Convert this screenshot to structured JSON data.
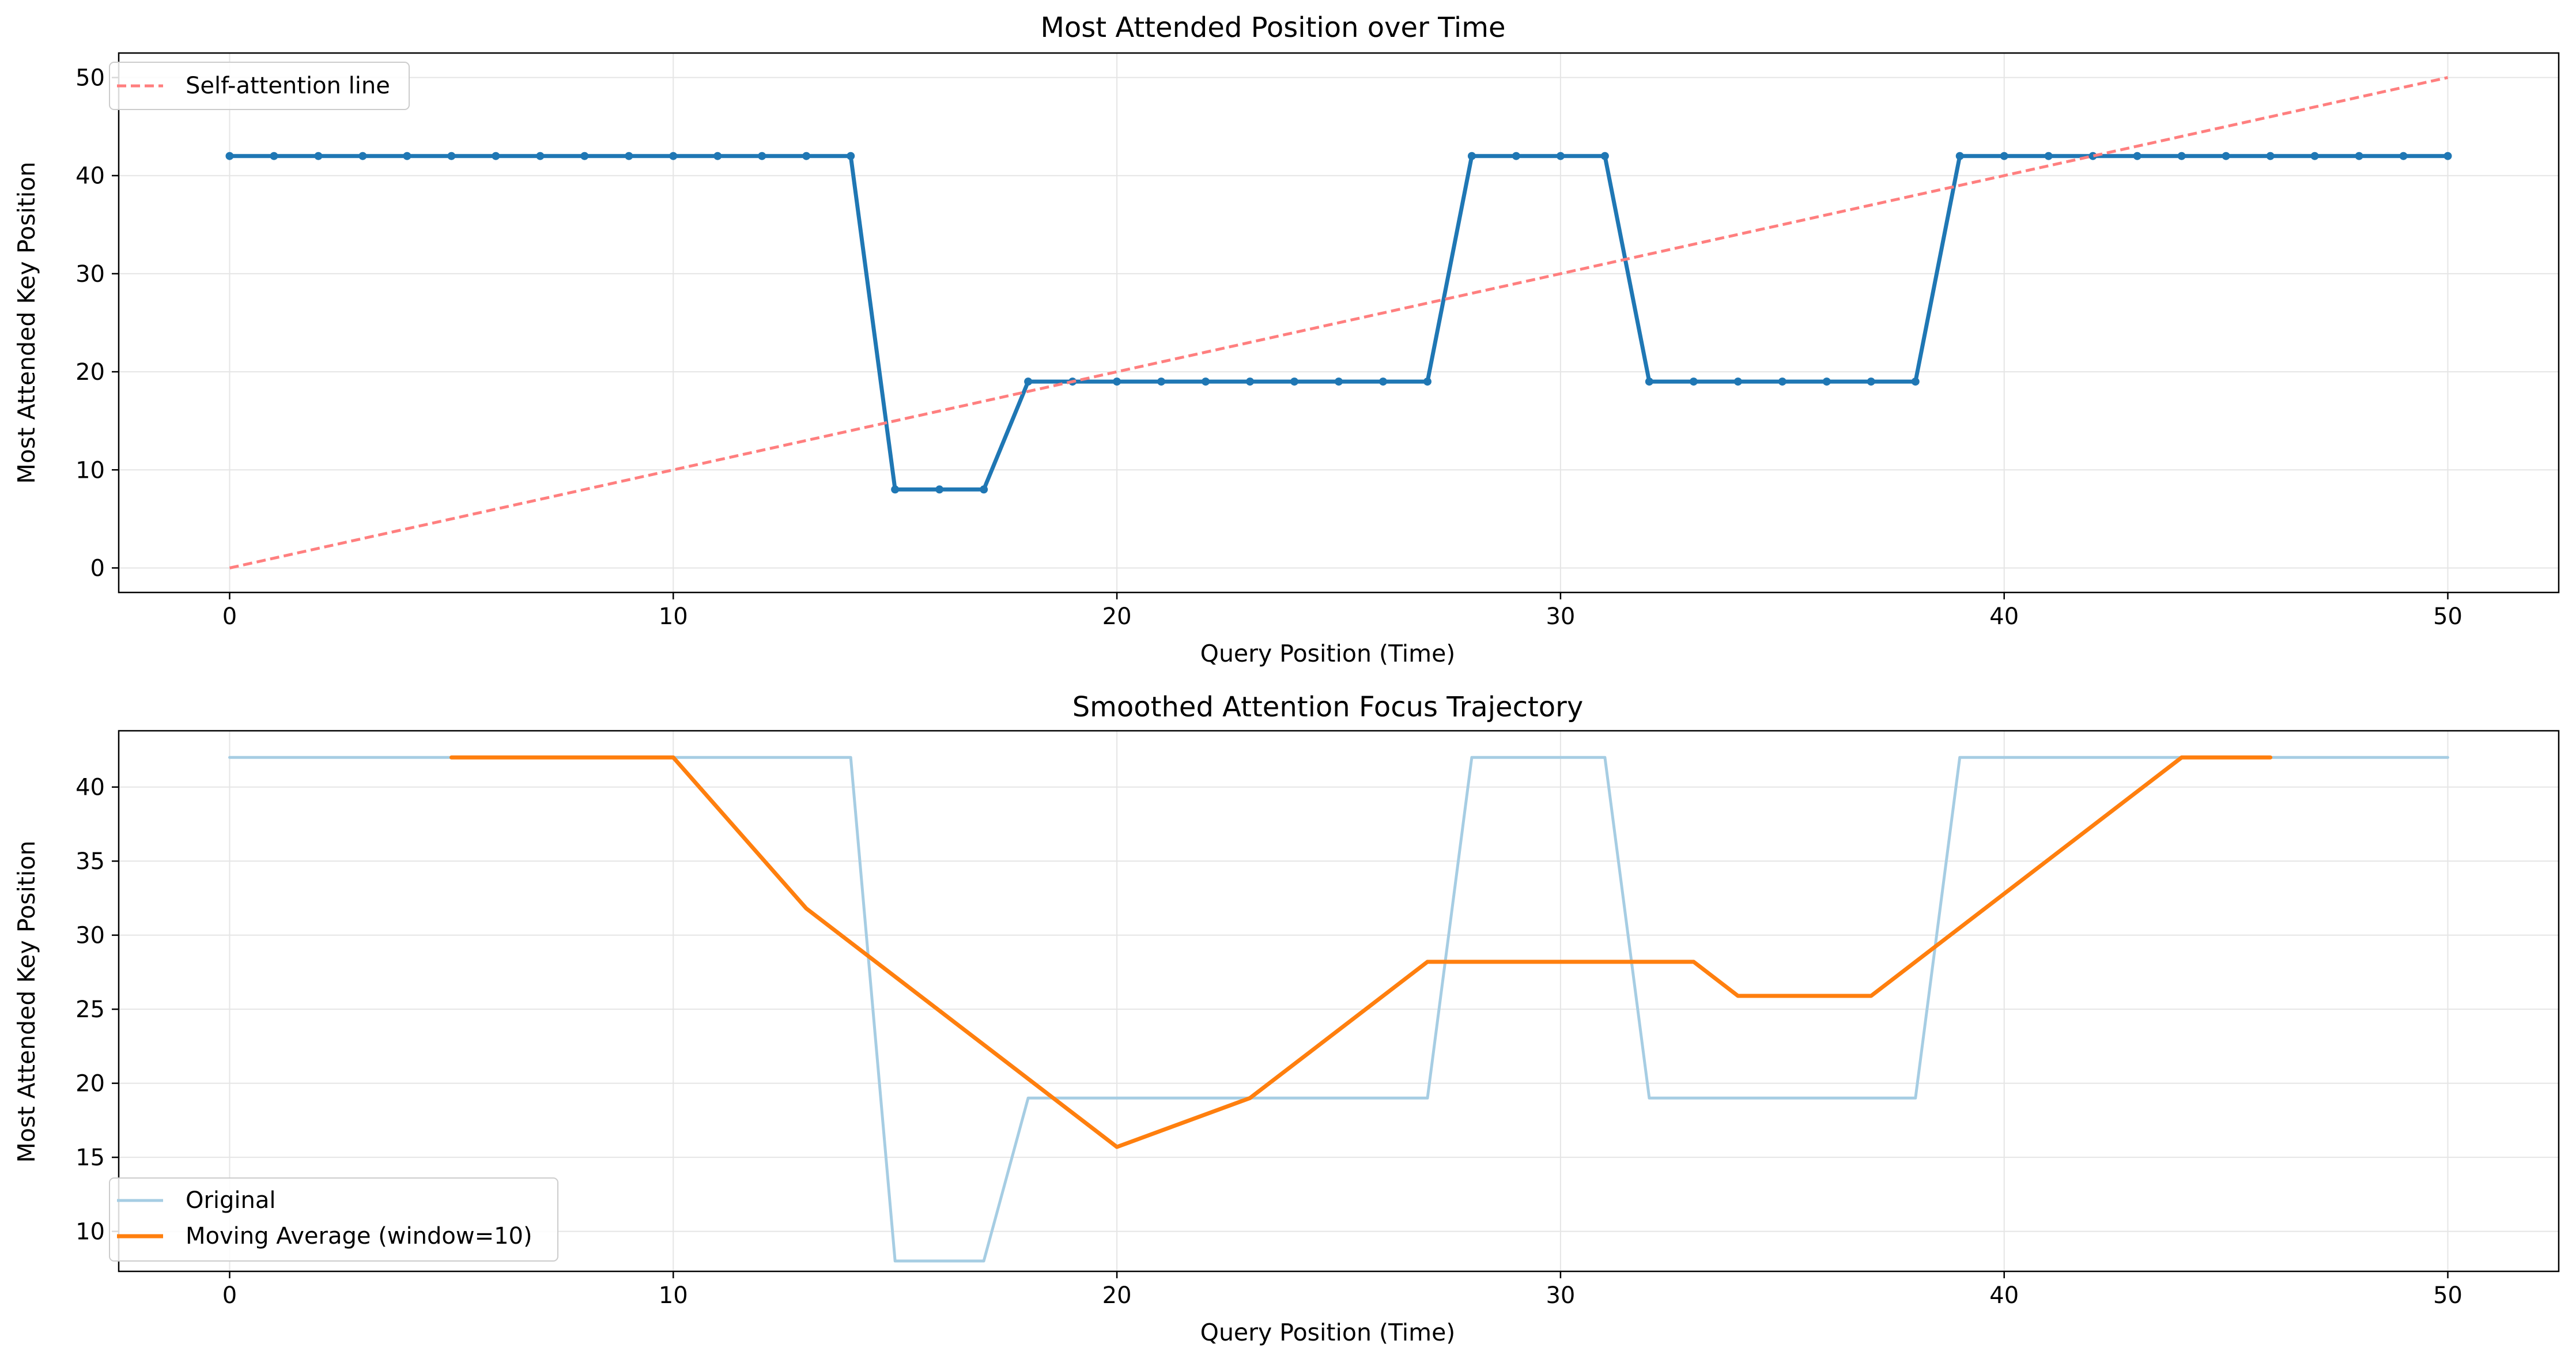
{
  "charts": [
    {
      "type": "line",
      "title": "Most Attended Position over Time",
      "xlabel": "Query Position (Time)",
      "ylabel": "Most Attended Key Position",
      "xlim": [
        -2.5,
        52.5
      ],
      "ylim": [
        -2.5,
        52.5
      ],
      "xticks": [
        0,
        10,
        20,
        30,
        40,
        50
      ],
      "yticks": [
        0,
        10,
        20,
        30,
        40,
        50
      ],
      "grid": true,
      "legend_position": "upper-left",
      "colors": {
        "main": "#1f77b4",
        "self_line": "#ff7f7f"
      },
      "series": [
        {
          "key": "main",
          "style": "solid-markers",
          "x": [
            0,
            1,
            2,
            3,
            4,
            5,
            6,
            7,
            8,
            9,
            10,
            11,
            12,
            13,
            14,
            15,
            16,
            17,
            18,
            19,
            20,
            21,
            22,
            23,
            24,
            25,
            26,
            27,
            28,
            29,
            30,
            31,
            32,
            33,
            34,
            35,
            36,
            37,
            38,
            39,
            40,
            41,
            42,
            43,
            44,
            45,
            46,
            47,
            48,
            49,
            50
          ],
          "y": [
            42,
            42,
            42,
            42,
            42,
            42,
            42,
            42,
            42,
            42,
            42,
            42,
            42,
            42,
            42,
            8,
            8,
            8,
            19,
            19,
            19,
            19,
            19,
            19,
            19,
            19,
            19,
            19,
            42,
            42,
            42,
            42,
            19,
            19,
            19,
            19,
            19,
            19,
            19,
            42,
            42,
            42,
            42,
            42,
            42,
            42,
            42,
            42,
            42,
            42,
            42
          ]
        },
        {
          "key": "self_line",
          "name": "Self-attention line",
          "style": "dashed",
          "x": [
            0,
            50
          ],
          "y": [
            0,
            50
          ]
        }
      ]
    },
    {
      "type": "line",
      "title": "Smoothed Attention Focus Trajectory",
      "xlabel": "Query Position (Time)",
      "ylabel": "Most Attended Key Position",
      "xlim": [
        -2.5,
        52.5
      ],
      "ylim": [
        7.3,
        43.8
      ],
      "xticks": [
        0,
        10,
        20,
        30,
        40,
        50
      ],
      "yticks": [
        10,
        15,
        20,
        25,
        30,
        35,
        40
      ],
      "grid": true,
      "legend_position": "lower-left",
      "colors": {
        "original": "#a6cde3",
        "moving": "#ff7f0e"
      },
      "series": [
        {
          "key": "original",
          "name": "Original",
          "style": "solid-thin",
          "x": [
            0,
            1,
            2,
            3,
            4,
            5,
            6,
            7,
            8,
            9,
            10,
            11,
            12,
            13,
            14,
            15,
            16,
            17,
            18,
            19,
            20,
            21,
            22,
            23,
            24,
            25,
            26,
            27,
            28,
            29,
            30,
            31,
            32,
            33,
            34,
            35,
            36,
            37,
            38,
            39,
            40,
            41,
            42,
            43,
            44,
            45,
            46,
            47,
            48,
            49,
            50
          ],
          "y": [
            42,
            42,
            42,
            42,
            42,
            42,
            42,
            42,
            42,
            42,
            42,
            42,
            42,
            42,
            42,
            8,
            8,
            8,
            19,
            19,
            19,
            19,
            19,
            19,
            19,
            19,
            19,
            19,
            42,
            42,
            42,
            42,
            19,
            19,
            19,
            19,
            19,
            19,
            19,
            42,
            42,
            42,
            42,
            42,
            42,
            42,
            42,
            42,
            42,
            42,
            42
          ]
        },
        {
          "key": "moving",
          "name": "Moving Average (window=10)",
          "style": "solid-thick",
          "x": [
            5,
            10,
            13,
            20,
            23,
            27,
            33,
            34,
            37,
            44,
            46
          ],
          "y": [
            42,
            42,
            31.8,
            15.7,
            19,
            28.2,
            28.2,
            25.9,
            25.9,
            42,
            42
          ]
        }
      ]
    }
  ]
}
